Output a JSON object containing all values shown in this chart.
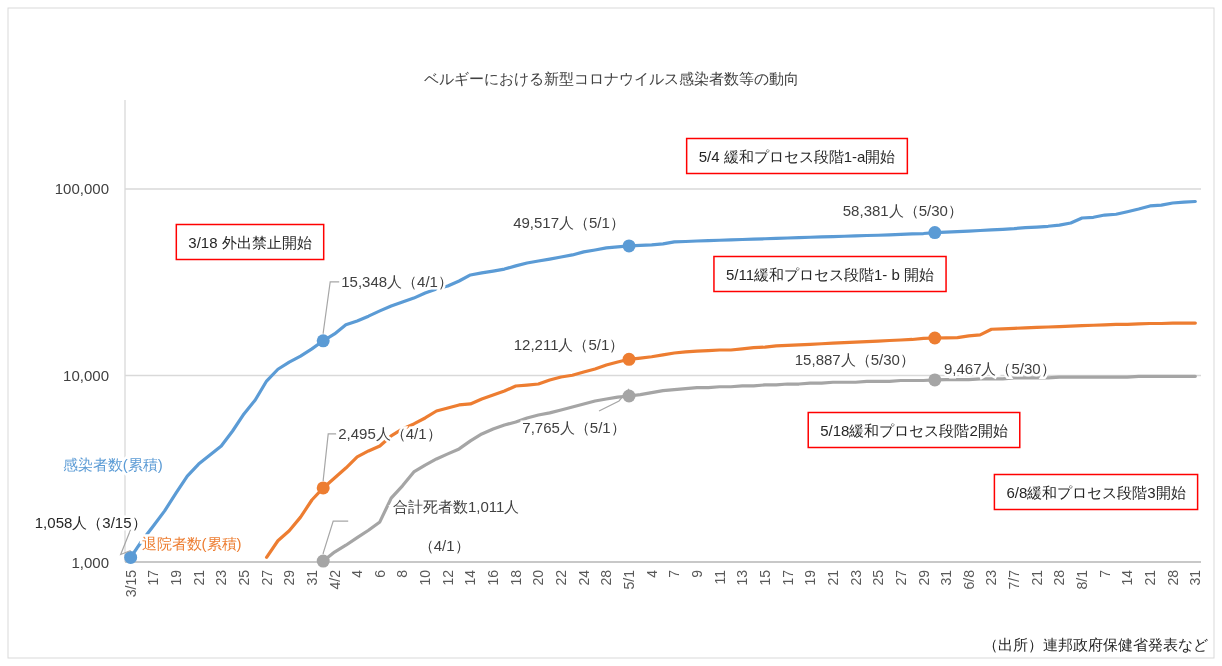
{
  "chart_data": {
    "type": "line",
    "title": "ベルギーにおける新型コロナウイルス感染者数等の動向",
    "categories": [
      "3/15",
      null,
      "17",
      null,
      "19",
      null,
      "21",
      null,
      "23",
      null,
      "25",
      null,
      "27",
      null,
      "29",
      null,
      "31",
      null,
      "4/2",
      null,
      "4",
      null,
      "6",
      null,
      "8",
      null,
      "10",
      null,
      "12",
      null,
      "14",
      null,
      "16",
      null,
      "18",
      null,
      "20",
      null,
      "22",
      null,
      "24",
      null,
      "28",
      null,
      "5/1",
      null,
      "4",
      null,
      "7",
      null,
      "9",
      null,
      "11",
      null,
      "13",
      null,
      "15",
      null,
      "17",
      null,
      "19",
      null,
      "21",
      null,
      "23",
      null,
      "25",
      null,
      "27",
      null,
      "29",
      null,
      "31",
      null,
      "6/8",
      null,
      "23",
      null,
      "7/7",
      null,
      "21",
      null,
      "28",
      null,
      "8/1",
      null,
      "7",
      null,
      "14",
      null,
      "21",
      null,
      "28",
      null,
      "31"
    ],
    "log": true,
    "ylim": [
      1000,
      300000
    ],
    "yticks": [
      {
        "value": 1000,
        "label": "1,000"
      },
      {
        "value": 10000,
        "label": "10,000"
      },
      {
        "value": 100000,
        "label": "100,000"
      }
    ],
    "grid": "y",
    "series": [
      {
        "name": "感染者数(累積)",
        "color": "#5b9bd5",
        "values": [
          1058,
          1300,
          1560,
          1880,
          2340,
          2890,
          3350,
          3750,
          4190,
          5040,
          6220,
          7390,
          9340,
          10800,
          11800,
          12700,
          13900,
          15348,
          16700,
          18700,
          19600,
          20800,
          22200,
          23600,
          24800,
          26000,
          27700,
          29100,
          30200,
          32100,
          34600,
          35500,
          36300,
          37200,
          38700,
          40100,
          41100,
          42100,
          43200,
          44300,
          46000,
          47100,
          48300,
          48900,
          49517,
          49800,
          50200,
          50800,
          52000,
          52300,
          52600,
          52800,
          53100,
          53300,
          53600,
          53900,
          54100,
          54400,
          54600,
          54800,
          55100,
          55300,
          55600,
          55800,
          56000,
          56300,
          56500,
          56800,
          57100,
          57400,
          57700,
          58381,
          58700,
          59100,
          59500,
          59900,
          60400,
          60800,
          61300,
          62000,
          62500,
          63100,
          64000,
          65700,
          69900,
          70500,
          72500,
          73200,
          75500,
          78100,
          81100,
          82000,
          84100,
          85000,
          85700
        ]
      },
      {
        "name": "退院者数(累積)",
        "color": "#ed7d31",
        "values": [
          null,
          null,
          null,
          null,
          null,
          null,
          null,
          null,
          null,
          null,
          null,
          null,
          1060,
          1300,
          1470,
          1740,
          2150,
          2495,
          2820,
          3190,
          3660,
          3940,
          4190,
          4740,
          5170,
          5500,
          5920,
          6450,
          6690,
          6950,
          7040,
          7480,
          7860,
          8260,
          8780,
          8880,
          9000,
          9460,
          9820,
          10030,
          10440,
          10830,
          11380,
          11810,
          12211,
          12400,
          12600,
          12900,
          13200,
          13400,
          13500,
          13600,
          13700,
          13700,
          13900,
          14100,
          14200,
          14400,
          14500,
          14600,
          14700,
          14800,
          14900,
          15000,
          15100,
          15200,
          15300,
          15400,
          15500,
          15600,
          15800,
          15887,
          15900,
          15950,
          16300,
          16500,
          17700,
          17800,
          17900,
          18000,
          18100,
          18200,
          18300,
          18400,
          18500,
          18600,
          18700,
          18800,
          18800,
          18900,
          19000,
          19000,
          19100,
          19100,
          19100
        ]
      },
      {
        "color": "#a5a5a5",
        "values": [
          null,
          null,
          null,
          null,
          null,
          null,
          null,
          null,
          null,
          null,
          null,
          null,
          null,
          null,
          null,
          null,
          null,
          1011,
          1130,
          1230,
          1350,
          1480,
          1640,
          2200,
          2560,
          3040,
          3310,
          3570,
          3800,
          4040,
          4460,
          4860,
          5170,
          5430,
          5630,
          5920,
          6140,
          6300,
          6530,
          6780,
          7040,
          7300,
          7480,
          7660,
          7765,
          7900,
          8100,
          8300,
          8400,
          8500,
          8600,
          8600,
          8700,
          8700,
          8800,
          8800,
          8900,
          8900,
          9000,
          9000,
          9100,
          9100,
          9200,
          9200,
          9200,
          9300,
          9300,
          9300,
          9400,
          9400,
          9400,
          9467,
          9500,
          9500,
          9500,
          9600,
          9600,
          9600,
          9700,
          9700,
          9700,
          9700,
          9800,
          9800,
          9800,
          9800,
          9800,
          9800,
          9800,
          9900,
          9900,
          9900,
          9900,
          9900,
          9900
        ]
      },
      {
        "type": "scatter",
        "marker": "circle",
        "color": "#5b9bd5",
        "values": [
          1058,
          null,
          null,
          null,
          null,
          null,
          null,
          null,
          null,
          null,
          null,
          null,
          null,
          null,
          null,
          null,
          null,
          15348,
          null,
          null,
          null,
          null,
          null,
          null,
          null,
          null,
          null,
          null,
          null,
          null,
          null,
          null,
          null,
          null,
          null,
          null,
          null,
          null,
          null,
          null,
          null,
          null,
          null,
          null,
          49517,
          null,
          null,
          null,
          null,
          null,
          null,
          null,
          null,
          null,
          null,
          null,
          null,
          null,
          null,
          null,
          null,
          null,
          null,
          null,
          null,
          null,
          null,
          null,
          null,
          null,
          null,
          58381,
          null,
          null,
          null,
          null,
          null,
          null,
          null,
          null,
          null,
          null,
          null,
          null,
          null,
          null,
          null,
          null,
          null,
          null,
          null,
          null,
          null,
          null,
          null
        ],
        "value_labels": [
          "1,058人（3/15）",
          null,
          null,
          null,
          null,
          null,
          null,
          null,
          null,
          null,
          null,
          null,
          null,
          null,
          null,
          null,
          null,
          "15,348人（4/1）",
          null,
          null,
          null,
          null,
          null,
          null,
          null,
          null,
          null,
          null,
          null,
          null,
          null,
          null,
          null,
          null,
          null,
          null,
          null,
          null,
          null,
          null,
          null,
          null,
          null,
          null,
          "49,517人（5/1）",
          null,
          null,
          null,
          null,
          null,
          null,
          null,
          null,
          null,
          null,
          null,
          null,
          null,
          null,
          null,
          null,
          null,
          null,
          null,
          null,
          null,
          null,
          null,
          null,
          null,
          null,
          "58,381人（5/30）",
          null,
          null,
          null,
          null,
          null,
          null,
          null,
          null,
          null,
          null,
          null,
          null,
          null,
          null,
          null,
          null,
          null,
          null,
          null,
          null,
          null,
          null,
          null
        ]
      },
      {
        "type": "scatter",
        "marker": "circle",
        "color": "#ed7d31",
        "values": [
          null,
          null,
          null,
          null,
          null,
          null,
          null,
          null,
          null,
          null,
          null,
          null,
          null,
          null,
          null,
          null,
          null,
          2495,
          null,
          null,
          null,
          null,
          null,
          null,
          null,
          null,
          null,
          null,
          null,
          null,
          null,
          null,
          null,
          null,
          null,
          null,
          null,
          null,
          null,
          null,
          null,
          null,
          null,
          null,
          12211,
          null,
          null,
          null,
          null,
          null,
          null,
          null,
          null,
          null,
          null,
          null,
          null,
          null,
          null,
          null,
          null,
          null,
          null,
          null,
          null,
          null,
          null,
          null,
          null,
          null,
          null,
          15887,
          null,
          null,
          null,
          null,
          null,
          null,
          null,
          null,
          null,
          null,
          null,
          null,
          null,
          null,
          null,
          null,
          null,
          null,
          null,
          null,
          null,
          null,
          null
        ],
        "value_labels": [
          null,
          null,
          null,
          null,
          null,
          null,
          null,
          null,
          null,
          null,
          null,
          null,
          null,
          null,
          null,
          null,
          null,
          "2,495人（4/1）",
          null,
          null,
          null,
          null,
          null,
          null,
          null,
          null,
          null,
          null,
          null,
          null,
          null,
          null,
          null,
          null,
          null,
          null,
          null,
          null,
          null,
          null,
          null,
          null,
          null,
          null,
          "12,211人（5/1）",
          null,
          null,
          null,
          null,
          null,
          null,
          null,
          null,
          null,
          null,
          null,
          null,
          null,
          null,
          null,
          null,
          null,
          null,
          null,
          null,
          null,
          null,
          null,
          null,
          null,
          null,
          "15,887人（5/30）",
          null,
          null,
          null,
          null,
          null,
          null,
          null,
          null,
          null,
          null,
          null,
          null,
          null,
          null,
          null,
          null,
          null,
          null,
          null,
          null,
          null,
          null,
          null
        ]
      },
      {
        "type": "scatter",
        "marker": "circle",
        "color": "#a5a5a5",
        "values": [
          null,
          null,
          null,
          null,
          null,
          null,
          null,
          null,
          null,
          null,
          null,
          null,
          null,
          null,
          null,
          null,
          null,
          1011,
          null,
          null,
          null,
          null,
          null,
          null,
          null,
          null,
          null,
          null,
          null,
          null,
          null,
          null,
          null,
          null,
          null,
          null,
          null,
          null,
          null,
          null,
          null,
          null,
          null,
          null,
          7765,
          null,
          null,
          null,
          null,
          null,
          null,
          null,
          null,
          null,
          null,
          null,
          null,
          null,
          null,
          null,
          null,
          null,
          null,
          null,
          null,
          null,
          null,
          null,
          null,
          null,
          null,
          9467,
          null,
          null,
          null,
          null,
          null,
          null,
          null,
          null,
          null,
          null,
          null,
          null,
          null,
          null,
          null,
          null,
          null,
          null,
          null,
          null,
          null,
          null,
          null
        ],
        "value_labels": [
          null,
          null,
          null,
          null,
          null,
          null,
          null,
          null,
          null,
          null,
          null,
          null,
          null,
          null,
          null,
          null,
          null,
          "合計死者数1,011人（4/1）",
          null,
          null,
          null,
          null,
          null,
          null,
          null,
          null,
          null,
          null,
          null,
          null,
          null,
          null,
          null,
          null,
          null,
          null,
          null,
          null,
          null,
          null,
          null,
          null,
          null,
          null,
          "7,765人（5/1）",
          null,
          null,
          null,
          null,
          null,
          null,
          null,
          null,
          null,
          null,
          null,
          null,
          null,
          null,
          null,
          null,
          null,
          null,
          null,
          null,
          null,
          null,
          null,
          null,
          null,
          null,
          "9,467人（5/30）",
          null,
          null,
          null,
          null,
          null,
          null,
          null,
          null,
          null,
          null,
          null,
          null,
          null,
          null,
          null,
          null,
          null,
          null,
          null,
          null,
          null,
          null,
          null
        ]
      }
    ],
    "annotations": [
      "3/18 外出禁止開始",
      "5/4 緩和プロセス段階1-a開始",
      "5/11緩和プロセス段階1- b 開始",
      "5/18緩和プロセス段階2開始",
      "6/8緩和プロセス段階3開始",
      "（出所）連邦政府保健省発表など"
    ]
  }
}
